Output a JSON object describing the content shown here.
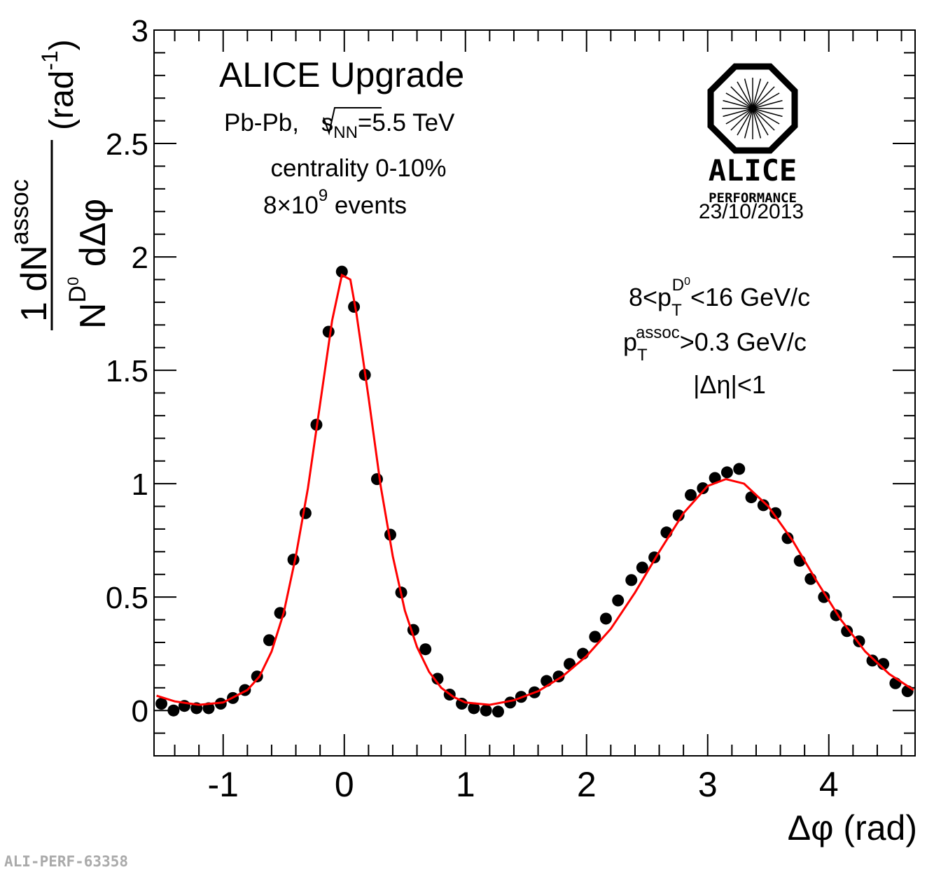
{
  "chart_data": {
    "type": "scatter",
    "title": "ALICE Upgrade",
    "annotations": {
      "system": [
        "Pb-Pb, ",
        "s",
        "NN",
        "=5.5 TeV"
      ],
      "centrality": "centrality 0-10%",
      "events": [
        "8×10",
        "9",
        " events"
      ],
      "pt_trig": [
        "8<p",
        "T",
        "D",
        "0",
        "<16 GeV/c"
      ],
      "pt_assoc": [
        "p",
        "T",
        "assoc",
        ">0.3 GeV/c"
      ],
      "eta": "|Δη|<1"
    },
    "logo": {
      "name": "ALICE",
      "sub": "PERFORMANCE",
      "date": "23/10/2013"
    },
    "footer": "ALI-PERF-63358",
    "x_label": "Δφ (rad)",
    "y_label": {
      "num": [
        "1 dN",
        "assoc"
      ],
      "den": [
        "N",
        "D",
        "0",
        " dΔφ"
      ],
      "unit": [
        "(rad",
        "-1",
        ")"
      ]
    },
    "xlim": [
      -1.5708,
      4.7124
    ],
    "ylim": [
      -0.2,
      3
    ],
    "xticks": [
      -1,
      0,
      1,
      2,
      3,
      4
    ],
    "yticks": [
      0,
      0.5,
      1,
      1.5,
      2,
      2.5,
      3
    ],
    "xminorticks": [
      -1.4,
      -1.2,
      -0.8,
      -0.6,
      -0.4,
      -0.2,
      0.2,
      0.4,
      0.6,
      0.8,
      1.2,
      1.4,
      1.6,
      1.8,
      2.2,
      2.4,
      2.6,
      2.8,
      3.2,
      3.4,
      3.6,
      3.8,
      4.2,
      4.4,
      4.6
    ],
    "yminorticks": [
      -0.1,
      0.1,
      0.2,
      0.3,
      0.4,
      0.6,
      0.7,
      0.8,
      0.9,
      1.1,
      1.2,
      1.3,
      1.4,
      1.6,
      1.7,
      1.8,
      1.9,
      2.1,
      2.2,
      2.3,
      2.4,
      2.6,
      2.7,
      2.8,
      2.9
    ],
    "series": [
      {
        "type": "scatter",
        "color": "#000000",
        "x": [
          -1.51,
          -1.41,
          -1.32,
          -1.22,
          -1.12,
          -1.02,
          -0.92,
          -0.82,
          -0.72,
          -0.62,
          -0.53,
          -0.42,
          -0.32,
          -0.23,
          -0.13,
          -0.02,
          0.08,
          0.17,
          0.27,
          0.38,
          0.47,
          0.57,
          0.67,
          0.77,
          0.87,
          0.97,
          1.07,
          1.17,
          1.27,
          1.37,
          1.46,
          1.57,
          1.67,
          1.77,
          1.86,
          1.97,
          2.07,
          2.16,
          2.26,
          2.37,
          2.46,
          2.56,
          2.66,
          2.76,
          2.86,
          2.96,
          3.06,
          3.16,
          3.26,
          3.36,
          3.46,
          3.56,
          3.66,
          3.76,
          3.85,
          3.96,
          4.06,
          4.15,
          4.25,
          4.36,
          4.45,
          4.55,
          4.65
        ],
        "values": [
          0.03,
          0.0,
          0.02,
          0.01,
          0.01,
          0.03,
          0.055,
          0.09,
          0.15,
          0.31,
          0.43,
          0.665,
          0.87,
          1.26,
          1.67,
          1.935,
          1.78,
          1.48,
          1.02,
          0.775,
          0.52,
          0.355,
          0.27,
          0.14,
          0.07,
          0.03,
          0.01,
          0.0,
          -0.005,
          0.035,
          0.06,
          0.08,
          0.13,
          0.15,
          0.205,
          0.25,
          0.325,
          0.405,
          0.485,
          0.575,
          0.63,
          0.675,
          0.785,
          0.86,
          0.95,
          0.98,
          1.025,
          1.05,
          1.065,
          0.94,
          0.905,
          0.87,
          0.76,
          0.66,
          0.58,
          0.5,
          0.42,
          0.35,
          0.305,
          0.22,
          0.205,
          0.12,
          0.085
        ]
      },
      {
        "type": "line",
        "color": "#ff0000",
        "x": [
          -1.55,
          -1.4,
          -1.2,
          -1.0,
          -0.8,
          -0.7,
          -0.6,
          -0.5,
          -0.4,
          -0.3,
          -0.2,
          -0.1,
          -0.02,
          0.05,
          0.1,
          0.2,
          0.3,
          0.4,
          0.5,
          0.6,
          0.7,
          0.8,
          0.9,
          1.0,
          1.2,
          1.4,
          1.6,
          1.8,
          2.0,
          2.2,
          2.4,
          2.6,
          2.8,
          3.0,
          3.15,
          3.3,
          3.5,
          3.7,
          3.9,
          4.1,
          4.3,
          4.5,
          4.7
        ],
        "values": [
          0.065,
          0.04,
          0.025,
          0.035,
          0.09,
          0.15,
          0.26,
          0.43,
          0.68,
          0.98,
          1.35,
          1.72,
          1.92,
          1.9,
          1.75,
          1.38,
          0.99,
          0.68,
          0.44,
          0.28,
          0.17,
          0.1,
          0.06,
          0.035,
          0.025,
          0.045,
          0.085,
          0.15,
          0.24,
          0.36,
          0.52,
          0.7,
          0.87,
          0.99,
          1.02,
          1.0,
          0.9,
          0.75,
          0.57,
          0.4,
          0.26,
          0.16,
          0.09
        ]
      }
    ]
  }
}
